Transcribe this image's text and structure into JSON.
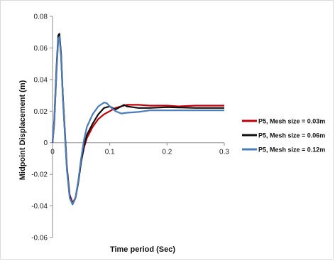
{
  "chart_data": {
    "type": "line",
    "title": "",
    "xlabel": "Time period (Sec)",
    "ylabel": "Midpoint Displacement (m)",
    "xlim": [
      0,
      0.3
    ],
    "ylim": [
      -0.06,
      0.08
    ],
    "x_ticks": [
      "0",
      "0.1",
      "0.2",
      "0.3"
    ],
    "y_ticks": [
      "-0.06",
      "-0.04",
      "-0.02",
      "0",
      "0.02",
      "0.04",
      "0.06",
      "0.08"
    ],
    "grid": false,
    "legend_position": "right",
    "series": [
      {
        "name": "P5, Mesh size = 0.03m",
        "color": "#c0000b",
        "points": [
          [
            0,
            0
          ],
          [
            0.003,
            0.012
          ],
          [
            0.007,
            0.045
          ],
          [
            0.01,
            0.066
          ],
          [
            0.012,
            0.068
          ],
          [
            0.015,
            0.055
          ],
          [
            0.018,
            0.03
          ],
          [
            0.022,
            0.005
          ],
          [
            0.025,
            -0.015
          ],
          [
            0.03,
            -0.033
          ],
          [
            0.035,
            -0.038
          ],
          [
            0.04,
            -0.035
          ],
          [
            0.045,
            -0.025
          ],
          [
            0.05,
            -0.012
          ],
          [
            0.055,
            -0.003
          ],
          [
            0.06,
            0.003
          ],
          [
            0.07,
            0.01
          ],
          [
            0.08,
            0.015
          ],
          [
            0.09,
            0.018
          ],
          [
            0.1,
            0.02
          ],
          [
            0.11,
            0.022
          ],
          [
            0.12,
            0.023
          ],
          [
            0.13,
            0.024
          ],
          [
            0.15,
            0.024
          ],
          [
            0.17,
            0.0235
          ],
          [
            0.2,
            0.0235
          ],
          [
            0.22,
            0.023
          ],
          [
            0.25,
            0.0235
          ],
          [
            0.28,
            0.0235
          ],
          [
            0.3,
            0.0235
          ]
        ]
      },
      {
        "name": "P5, Mesh size = 0.06m",
        "color": "#111111",
        "points": [
          [
            0,
            0
          ],
          [
            0.003,
            0.014
          ],
          [
            0.007,
            0.048
          ],
          [
            0.01,
            0.068
          ],
          [
            0.012,
            0.069
          ],
          [
            0.015,
            0.056
          ],
          [
            0.018,
            0.03
          ],
          [
            0.022,
            0.004
          ],
          [
            0.025,
            -0.016
          ],
          [
            0.03,
            -0.034
          ],
          [
            0.035,
            -0.039
          ],
          [
            0.04,
            -0.035
          ],
          [
            0.045,
            -0.025
          ],
          [
            0.05,
            -0.012
          ],
          [
            0.055,
            -0.002
          ],
          [
            0.06,
            0.005
          ],
          [
            0.07,
            0.012
          ],
          [
            0.08,
            0.018
          ],
          [
            0.09,
            0.022
          ],
          [
            0.1,
            0.023
          ],
          [
            0.11,
            0.021
          ],
          [
            0.12,
            0.023
          ],
          [
            0.125,
            0.024
          ],
          [
            0.13,
            0.023
          ],
          [
            0.14,
            0.0225
          ],
          [
            0.15,
            0.022
          ],
          [
            0.17,
            0.022
          ],
          [
            0.2,
            0.0225
          ],
          [
            0.25,
            0.022
          ],
          [
            0.3,
            0.022
          ]
        ]
      },
      {
        "name": "P5, Mesh size = 0.12m",
        "color": "#4a7ebb",
        "points": [
          [
            0,
            0
          ],
          [
            0.003,
            0.013
          ],
          [
            0.007,
            0.046
          ],
          [
            0.01,
            0.066
          ],
          [
            0.012,
            0.067
          ],
          [
            0.015,
            0.054
          ],
          [
            0.018,
            0.029
          ],
          [
            0.022,
            0.003
          ],
          [
            0.025,
            -0.017
          ],
          [
            0.03,
            -0.035
          ],
          [
            0.035,
            -0.039
          ],
          [
            0.04,
            -0.035
          ],
          [
            0.045,
            -0.024
          ],
          [
            0.05,
            -0.01
          ],
          [
            0.055,
            0.002
          ],
          [
            0.06,
            0.01
          ],
          [
            0.07,
            0.018
          ],
          [
            0.08,
            0.023
          ],
          [
            0.09,
            0.0255
          ],
          [
            0.095,
            0.025
          ],
          [
            0.1,
            0.023
          ],
          [
            0.11,
            0.02
          ],
          [
            0.12,
            0.0185
          ],
          [
            0.13,
            0.019
          ],
          [
            0.15,
            0.0195
          ],
          [
            0.17,
            0.0205
          ],
          [
            0.2,
            0.0205
          ],
          [
            0.25,
            0.0205
          ],
          [
            0.3,
            0.0205
          ]
        ]
      }
    ]
  }
}
